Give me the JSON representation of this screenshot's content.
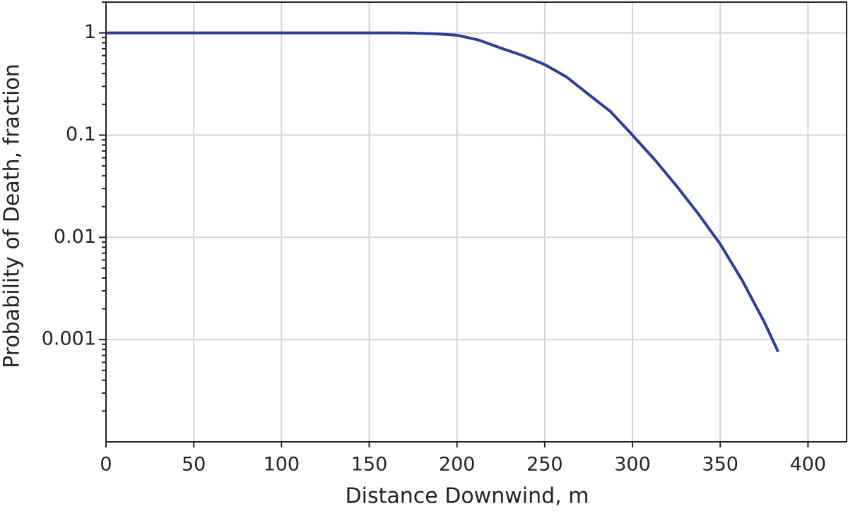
{
  "chart_data": {
    "type": "line",
    "xlabel": "Distance Downwind, m",
    "ylabel": "Probability of Death, fraction",
    "xlim": [
      0,
      422
    ],
    "xticks": [
      0,
      50,
      100,
      150,
      200,
      250,
      300,
      350,
      400
    ],
    "ylim": [
      0.0001,
      2
    ],
    "yticks": [
      1,
      0.1,
      0.01,
      0.001
    ],
    "minor_yticks": [
      2,
      0.9,
      0.8,
      0.7,
      0.6,
      0.5,
      0.4,
      0.3,
      0.2,
      0.09,
      0.08,
      0.07,
      0.06,
      0.05,
      0.04,
      0.03,
      0.02,
      0.009,
      0.008,
      0.007,
      0.006,
      0.005,
      0.004,
      0.003,
      0.002,
      0.0009,
      0.0008,
      0.0007,
      0.0006,
      0.0005,
      0.0004,
      0.0003,
      0.0002
    ],
    "log_y": true,
    "grid": true,
    "x": [
      0,
      50,
      100,
      150,
      165,
      175,
      187.5,
      200,
      212.5,
      225,
      237.5,
      250,
      262.5,
      275,
      287.5,
      300,
      312.5,
      325,
      337.5,
      350,
      362.5,
      375,
      383
    ],
    "series": [
      {
        "name": "Probability of Death",
        "color": "#2b3f99",
        "values": [
          1,
          1,
          1,
          1,
          1,
          0.995,
          0.98,
          0.95,
          0.85,
          0.71,
          0.6,
          0.49,
          0.37,
          0.25,
          0.17,
          0.1,
          0.058,
          0.032,
          0.017,
          0.0086,
          0.0038,
          0.0015,
          0.00076
        ]
      }
    ]
  }
}
